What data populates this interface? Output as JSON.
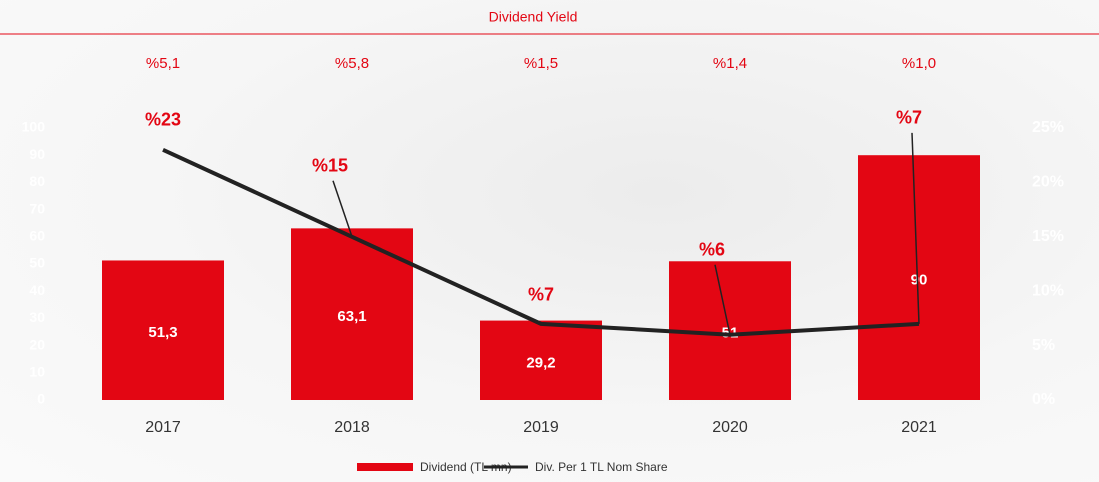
{
  "chart_data": {
    "type": "bar-line",
    "annotations": {
      "title": "Dividend Yield",
      "labels": [
        "%5,1",
        "%5,8",
        "%1,5",
        "%1,4",
        "%1,0"
      ]
    },
    "categories": [
      "2017",
      "2018",
      "2019",
      "2020",
      "2021"
    ],
    "series": [
      {
        "name": "Dividend (TL mn)",
        "type": "bar",
        "color": "#e30613",
        "values": [
          51.3,
          63.1,
          29.2,
          51,
          90
        ],
        "value_labels": [
          "51,3",
          "63,1",
          "29,2",
          "51",
          "90"
        ]
      },
      {
        "name": "Div. Per 1 TL Nom Share",
        "type": "line",
        "axis": "y2",
        "color": "#222222",
        "values": [
          23,
          15,
          7,
          6,
          7
        ],
        "value_labels": [
          "%23",
          "%15",
          "%7",
          "%6",
          "%7"
        ]
      }
    ],
    "ylim": [
      0,
      100
    ],
    "yticks": [
      0,
      10,
      20,
      30,
      40,
      50,
      60,
      70,
      80,
      90,
      100
    ],
    "y2lim": [
      0,
      25
    ],
    "y2ticks": [
      {
        "value": 0,
        "label": "0%"
      },
      {
        "value": 5,
        "label": "5%"
      },
      {
        "value": 10,
        "label": "10%"
      },
      {
        "value": 15,
        "label": "15%"
      },
      {
        "value": 20,
        "label": "20%"
      },
      {
        "value": 25,
        "label": "25%"
      }
    ],
    "legend": "bottom"
  }
}
